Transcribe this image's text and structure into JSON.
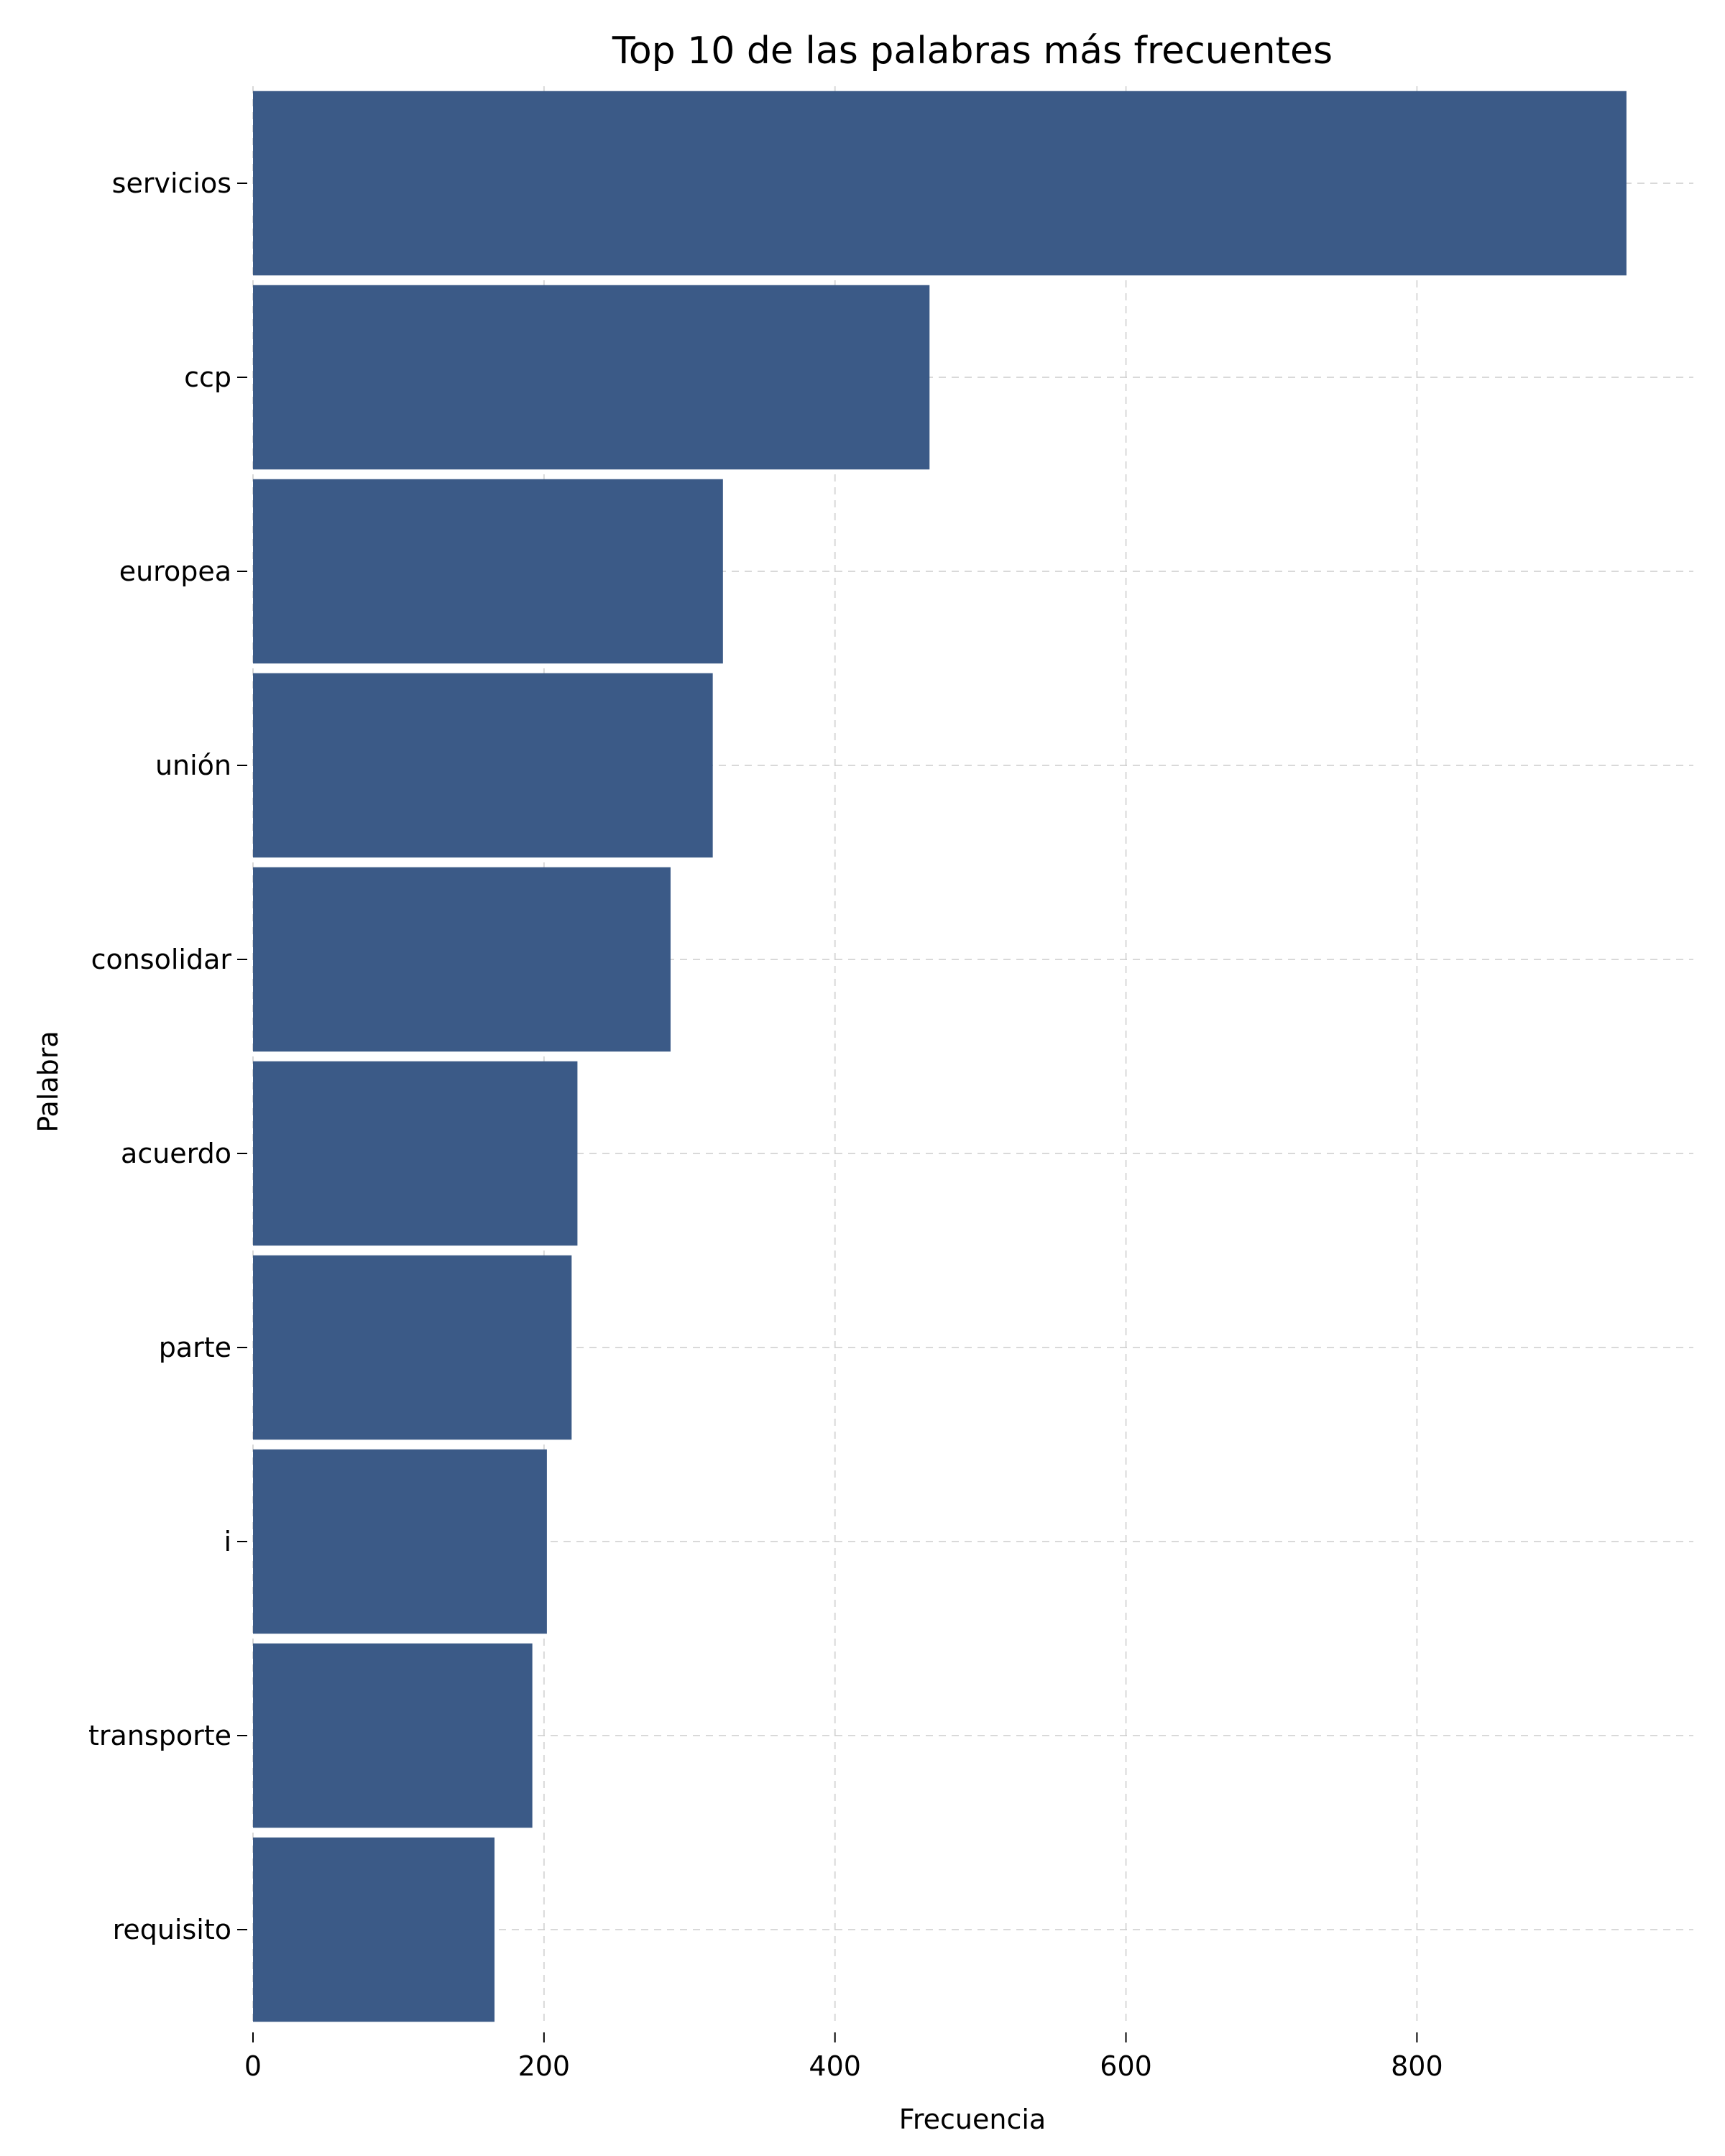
{
  "chart_data": {
    "type": "bar",
    "orientation": "horizontal",
    "title": "Top 10 de las palabras más frecuentes",
    "xlabel": "Frecuencia",
    "ylabel": "Palabra",
    "categories": [
      "servicios",
      "ccp",
      "europea",
      "unión",
      "consolidar",
      "acuerdo",
      "parte",
      "i",
      "transporte",
      "requisito"
    ],
    "values": [
      944,
      465,
      323,
      316,
      287,
      223,
      219,
      202,
      192,
      166
    ],
    "xlim": [
      0,
      990
    ],
    "xticks": [
      0,
      200,
      400,
      600,
      800
    ],
    "grid": true,
    "bar_color": "#3b5a87"
  }
}
